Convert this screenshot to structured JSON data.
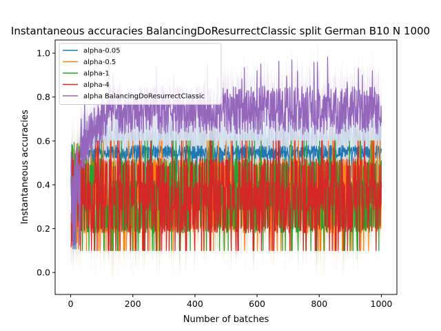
{
  "chart_data": {
    "type": "line",
    "title": "Instantaneous accuracies BalancingDoResurrectClassic split German B10 N 1000",
    "xlabel": "Number of batches",
    "ylabel": "Instantaneous accuracies",
    "xlim": [
      -50,
      1050
    ],
    "ylim": [
      -0.1,
      1.06
    ],
    "x_ticks": [
      0,
      200,
      400,
      600,
      800,
      1000
    ],
    "y_ticks": [
      0.0,
      0.2,
      0.4,
      0.6,
      0.8,
      1.0
    ],
    "x_tick_labels": [
      "0",
      "200",
      "400",
      "600",
      "800",
      "1000"
    ],
    "y_tick_labels": [
      "0.0",
      "0.2",
      "0.4",
      "0.6",
      "0.8",
      "1.0"
    ],
    "n_points": 1000,
    "grid": false,
    "legend_position": "top-left",
    "series": [
      {
        "name": "alpha-0.05",
        "color": "#1f77b4",
        "mean_level": 0.55,
        "spread": 0.03,
        "band_spread": 0.13
      },
      {
        "name": "alpha-0.5",
        "color": "#ff7f0e",
        "mean_level": 0.33,
        "spread": 0.12,
        "band_spread": 0.1
      },
      {
        "name": "alpha-1",
        "color": "#2ca02c",
        "mean_level": 0.35,
        "spread": 0.13,
        "band_spread": 0.1
      },
      {
        "name": "alpha-4",
        "color": "#d62728",
        "mean_level": 0.32,
        "spread": 0.13,
        "band_spread": 0.08
      },
      {
        "name": "alpha BalancingDoResurrectClassic",
        "color": "#9467bd",
        "mean_level": 0.74,
        "spread": 0.11,
        "band_spread": 0.1
      }
    ]
  }
}
